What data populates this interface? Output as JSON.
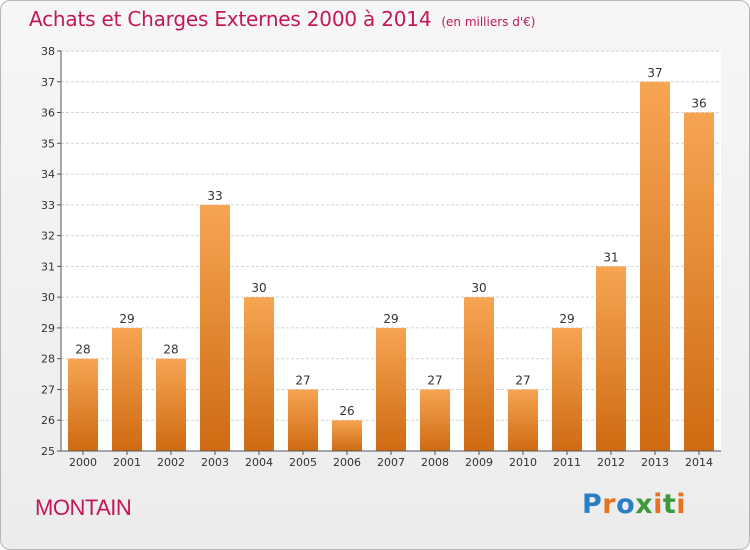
{
  "title": "Achats et Charges Externes 2000 à 2014",
  "unit_label": "(en milliers d'€)",
  "location": "MONTAIN",
  "logo": {
    "text": "Proxiti",
    "letters": [
      {
        "char": "P",
        "color": "#2a7fc4"
      },
      {
        "char": "r",
        "color": "#e8731f"
      },
      {
        "char": "o",
        "color": "#2a7fc4"
      },
      {
        "char": "x",
        "color": "#3d9a3a"
      },
      {
        "char": "i",
        "color": "#e8731f"
      },
      {
        "char": "t",
        "color": "#3d9a3a"
      },
      {
        "char": "i",
        "color": "#e8731f"
      }
    ]
  },
  "colors": {
    "accent": "#c2185b",
    "bar_top": "#f6a552",
    "bar_bottom": "#cf6a12",
    "grid": "#d2d2d2",
    "axis": "#555555"
  },
  "chart_data": {
    "type": "bar",
    "categories": [
      "2000",
      "2001",
      "2002",
      "2003",
      "2004",
      "2005",
      "2006",
      "2007",
      "2008",
      "2009",
      "2010",
      "2011",
      "2012",
      "2013",
      "2014"
    ],
    "values": [
      28,
      29,
      28,
      33,
      30,
      27,
      26,
      29,
      27,
      30,
      27,
      29,
      31,
      37,
      36
    ],
    "ylim": [
      25,
      38
    ],
    "yticks": [
      25,
      26,
      27,
      28,
      29,
      30,
      31,
      32,
      33,
      34,
      35,
      36,
      37,
      38
    ],
    "grid": true,
    "data_labels": true
  }
}
